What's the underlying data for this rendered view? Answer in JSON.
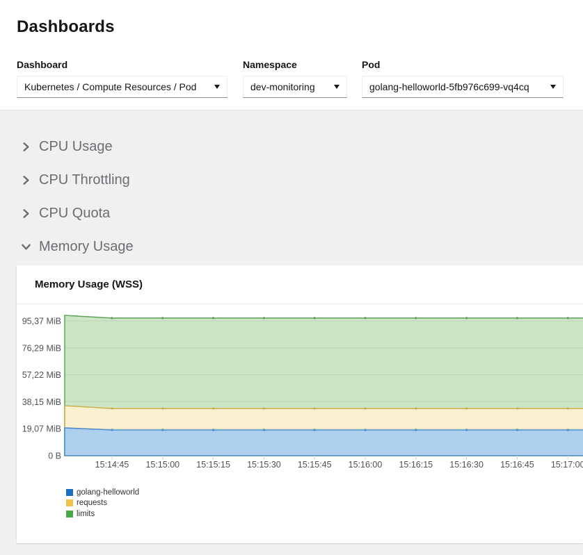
{
  "page": {
    "title": "Dashboards"
  },
  "filters": {
    "dashboard": {
      "label": "Dashboard",
      "value": "Kubernetes / Compute Resources / Pod"
    },
    "namespace": {
      "label": "Namespace",
      "value": "dev-monitoring"
    },
    "pod": {
      "label": "Pod",
      "value": "golang-helloworld-5fb976c699-vq4cq"
    }
  },
  "sections": [
    {
      "label": "CPU Usage",
      "expanded": false
    },
    {
      "label": "CPU Throttling",
      "expanded": false
    },
    {
      "label": "CPU Quota",
      "expanded": false
    },
    {
      "label": "Memory Usage",
      "expanded": true
    }
  ],
  "card": {
    "title": "Memory Usage (WSS)"
  },
  "chart_data": {
    "type": "area",
    "title": "Memory Usage (WSS)",
    "unit": "MiB",
    "ylim": [
      0,
      99.6
    ],
    "grid": "horizontal",
    "legend_position": "bottom-left",
    "y_tick_labels": [
      "95,37 MiB",
      "76,29 MiB",
      "57,22 MiB",
      "38,15 MiB",
      "19,07 MiB",
      "0 B"
    ],
    "y_tick_values": [
      95.37,
      76.29,
      57.22,
      38.15,
      19.07,
      0
    ],
    "x_labels": [
      "15:14:45",
      "15:15:00",
      "15:15:15",
      "15:15:30",
      "15:15:45",
      "15:16:00",
      "15:16:15",
      "15:16:30",
      "15:16:45",
      "15:17:00"
    ],
    "note_first_value_is_plot_left_edge": true,
    "series": [
      {
        "name": "golang-helloworld",
        "values": [
          19.7,
          18.2,
          18.2,
          18.2,
          18.2,
          18.2,
          18.2,
          18.2,
          18.2,
          18.2,
          18.2
        ],
        "color": "#4b8fd0",
        "fill": "#aed0ee",
        "legend_color": "#1a6fc4"
      },
      {
        "name": "requests",
        "values": [
          35.4,
          33.4,
          33.4,
          33.4,
          33.4,
          33.4,
          33.4,
          33.4,
          33.4,
          33.4,
          33.4
        ],
        "color": "#c9ad48",
        "fill": "#f9f0cf",
        "legend_color": "#f0c14b"
      },
      {
        "name": "limits",
        "values": [
          99.3,
          97.4,
          97.4,
          97.4,
          97.4,
          97.4,
          97.4,
          97.4,
          97.4,
          97.4,
          97.4
        ],
        "color": "#5ca455",
        "fill": "#cde6c6",
        "legend_color": "#46aa46"
      }
    ]
  }
}
